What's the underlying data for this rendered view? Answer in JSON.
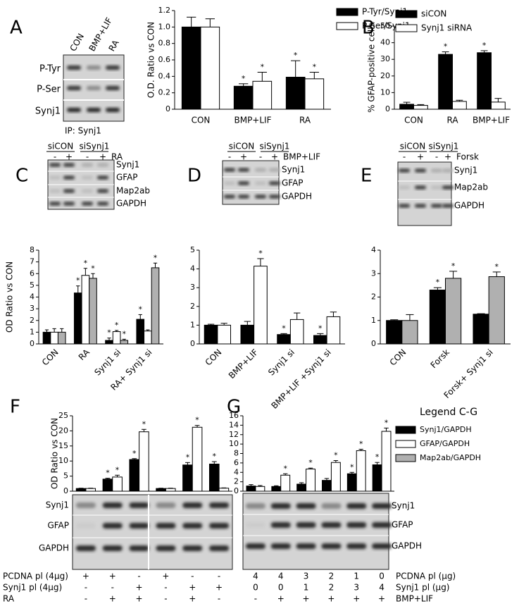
{
  "panels": {
    "letters": [
      "A",
      "B",
      "C",
      "D",
      "E",
      "F",
      "G"
    ],
    "blot_a": {
      "lanes": [
        "CON",
        "BMP+LIF",
        "RA"
      ],
      "rows": [
        "P-Tyr",
        "P-Ser",
        "Synj1"
      ],
      "caption": "IP: Synj1"
    },
    "blot_c": {
      "groups": [
        "siCON",
        "siSynj1"
      ],
      "signs": [
        "-",
        "+",
        "-",
        "+"
      ],
      "treatment": "RA",
      "rows": [
        "Synj1",
        "GFAP",
        "Map2ab",
        "GAPDH"
      ]
    },
    "blot_d": {
      "groups": [
        "siCON",
        "siSynj1"
      ],
      "signs": [
        "-",
        "+",
        "-",
        "+"
      ],
      "treatment": "BMP+LIF",
      "rows": [
        "Synj1",
        "GFAP",
        "GAPDH"
      ]
    },
    "blot_e": {
      "groups": [
        "siCON",
        "siSynj1"
      ],
      "signs": [
        "-",
        "+",
        "-",
        "+"
      ],
      "treatment": "Forsk",
      "rows": [
        "Synj1",
        "Map2ab",
        "GAPDH"
      ]
    },
    "blot_f": {
      "rows": [
        "Synj1",
        "GFAP",
        "GAPDH"
      ],
      "conditions": [
        {
          "label": "PCDNA pl (4μg)",
          "marks": [
            "+",
            "+",
            "-",
            "+",
            "-",
            "-"
          ]
        },
        {
          "label": "Synj1 pl (4μg)",
          "marks": [
            "-",
            "-",
            "+",
            "-",
            "+",
            "+"
          ]
        },
        {
          "label": "RA",
          "marks": [
            "-",
            "+",
            "+",
            "-",
            "+",
            "-"
          ]
        }
      ]
    },
    "blot_g": {
      "rows": [
        "Synj1",
        "GFAP",
        "GAPDH"
      ],
      "conditions": [
        {
          "label": "PCDNA pl (μg)",
          "marks": [
            4,
            4,
            3,
            2,
            1,
            0
          ]
        },
        {
          "label": "Synj1 pl (μg)",
          "marks": [
            0,
            0,
            1,
            2,
            3,
            4
          ]
        },
        {
          "label": "BMP+LIF",
          "marks": [
            "-",
            "+",
            "+",
            "+",
            "+",
            "+"
          ]
        }
      ]
    }
  },
  "legend": {
    "title": "Legend C-G",
    "entries": [
      {
        "name": "Synj1/GAPDH",
        "color": "#000000"
      },
      {
        "name": "GFAP/GAPDH",
        "color": "#ffffff"
      },
      {
        "name": "Map2ab/GAPDH",
        "color": "#b0b0b0"
      }
    ]
  },
  "chart_data": [
    {
      "type": "bar",
      "y_label": "O.D. Ratio vs CON",
      "categories": [
        "CON",
        "BMP+LIF",
        "RA"
      ],
      "series": [
        {
          "name": "P-Tyr/Synj1",
          "color": "#000000",
          "values": [
            1.0,
            0.28,
            0.39
          ],
          "errors": [
            0.12,
            0.03,
            0.2
          ],
          "stars": [
            null,
            "*",
            "*"
          ]
        },
        {
          "name": "P-Ser/Synj1",
          "color": "#ffffff",
          "values": [
            1.0,
            0.34,
            0.37
          ],
          "errors": [
            0.1,
            0.11,
            0.08
          ],
          "stars": [
            null,
            "*",
            "*"
          ]
        }
      ],
      "ylim": [
        0,
        1.2
      ],
      "yticks": [
        0,
        0.2,
        0.4,
        0.6,
        0.8,
        {
          "value": 1,
          "label": "1.0"
        },
        1.2
      ]
    },
    {
      "type": "bar",
      "y_label": "% GFAP-positive cells",
      "categories": [
        "CON",
        "RA",
        "BMP+LIF"
      ],
      "series": [
        {
          "name": "siCON",
          "color": "#000000",
          "values": [
            3,
            33,
            34
          ],
          "errors": [
            1.2,
            1.5,
            1.2
          ],
          "stars": [
            null,
            "*",
            "*"
          ]
        },
        {
          "name": "Synj1 siRNA",
          "color": "#ffffff",
          "values": [
            2.3,
            4.7,
            4.3
          ],
          "errors": [
            0.5,
            0.7,
            2.2
          ],
          "stars": [
            null,
            null,
            null
          ]
        }
      ],
      "ylim": [
        0,
        50
      ],
      "yticks": [
        0,
        10,
        20,
        30,
        40,
        50
      ]
    },
    {
      "type": "bar",
      "y_label": "OD Ratio vs CON",
      "categories": [
        "CON",
        "RA",
        "Synj1 si",
        "RA+ Synj1 si"
      ],
      "series": [
        {
          "color": "#000000",
          "values": [
            1.0,
            4.35,
            0.3,
            2.1
          ],
          "errors": [
            0.2,
            0.6,
            0.2,
            0.4
          ],
          "stars": [
            null,
            "*",
            "*",
            "*"
          ]
        },
        {
          "color": "#ffffff",
          "values": [
            1.0,
            5.85,
            1.05,
            1.1
          ],
          "errors": [
            0.3,
            0.6,
            0.1,
            0.1
          ],
          "stars": [
            null,
            "*",
            "*",
            null
          ]
        },
        {
          "color": "#b0b0b0",
          "values": [
            1.0,
            5.6,
            0.3,
            6.5
          ],
          "errors": [
            0.3,
            0.4,
            0.1,
            0.4
          ],
          "stars": [
            null,
            "*",
            "*",
            "*"
          ]
        }
      ],
      "ylim": [
        0,
        8
      ],
      "yticks": [
        0,
        1,
        2,
        3,
        4,
        5,
        6,
        7,
        8
      ]
    },
    {
      "type": "bar",
      "categories": [
        "CON",
        "BMP+LIF",
        "Synj1 si",
        "BMP+LIF +Synj1 si"
      ],
      "series": [
        {
          "color": "#000000",
          "values": [
            1.0,
            1.0,
            0.5,
            0.45
          ],
          "errors": [
            0.05,
            0.2,
            0.05,
            0.1
          ],
          "stars": [
            null,
            null,
            "*",
            "*"
          ]
        },
        {
          "color": "#ffffff",
          "values": [
            1.0,
            4.15,
            1.3,
            1.45
          ],
          "errors": [
            0.1,
            0.4,
            0.35,
            0.25
          ],
          "stars": [
            null,
            "*",
            null,
            null
          ]
        }
      ],
      "ylim": [
        0,
        5
      ],
      "yticks": [
        0,
        1,
        2,
        3,
        4,
        5
      ]
    },
    {
      "type": "bar",
      "categories": [
        "CON",
        "Forsk",
        "Forsk+ Synj1 si"
      ],
      "series": [
        {
          "color": "#000000",
          "values": [
            1.0,
            2.3,
            1.27
          ],
          "errors": [
            0.03,
            0.1,
            0.02
          ],
          "stars": [
            null,
            "*",
            null
          ]
        },
        {
          "color": "#b0b0b0",
          "values": [
            1.0,
            2.8,
            2.87
          ],
          "errors": [
            0.25,
            0.3,
            0.2
          ],
          "stars": [
            null,
            "*",
            "*"
          ]
        }
      ],
      "ylim": [
        0,
        4
      ],
      "yticks": [
        0,
        1,
        2,
        3,
        4
      ]
    },
    {
      "type": "bar",
      "y_label": "OD Ratio vs CON",
      "categories": [
        null,
        null,
        null,
        null,
        null,
        null
      ],
      "series": [
        {
          "color": "#000000",
          "values": [
            0.9,
            4.0,
            10.5,
            0.9,
            8.7,
            9.0
          ],
          "errors": [
            0.1,
            0.3,
            0.3,
            0.1,
            0.8,
            0.8
          ],
          "stars": [
            null,
            "*",
            "*",
            null,
            "*",
            "*"
          ]
        },
        {
          "color": "#ffffff",
          "values": [
            0.9,
            4.7,
            19.7,
            0.9,
            21.2,
            1.0
          ],
          "errors": [
            0.1,
            0.6,
            0.8,
            0.1,
            0.6,
            0.1
          ],
          "stars": [
            null,
            "*",
            "*",
            null,
            "*",
            null
          ]
        }
      ],
      "ylim": [
        0,
        25
      ],
      "yticks": [
        0,
        5,
        10,
        15,
        20,
        25
      ]
    },
    {
      "type": "bar",
      "categories": [
        null,
        null,
        null,
        null,
        null,
        null
      ],
      "series": [
        {
          "color": "#000000",
          "values": [
            1.1,
            1.0,
            1.5,
            2.3,
            3.7,
            5.6
          ],
          "errors": [
            0.3,
            0.15,
            0.3,
            0.4,
            0.3,
            0.5
          ],
          "stars": [
            null,
            null,
            null,
            null,
            "*",
            "*"
          ]
        },
        {
          "color": "#ffffff",
          "values": [
            1.0,
            3.4,
            4.7,
            6.1,
            8.6,
            12.7
          ],
          "errors": [
            0.2,
            0.3,
            0.2,
            0.4,
            0.3,
            0.7
          ],
          "stars": [
            null,
            "*",
            "*",
            "*",
            "*",
            "*"
          ]
        }
      ],
      "ylim": [
        0,
        16
      ],
      "yticks": [
        0,
        2,
        4,
        6,
        8,
        10,
        12,
        14,
        16
      ]
    }
  ]
}
